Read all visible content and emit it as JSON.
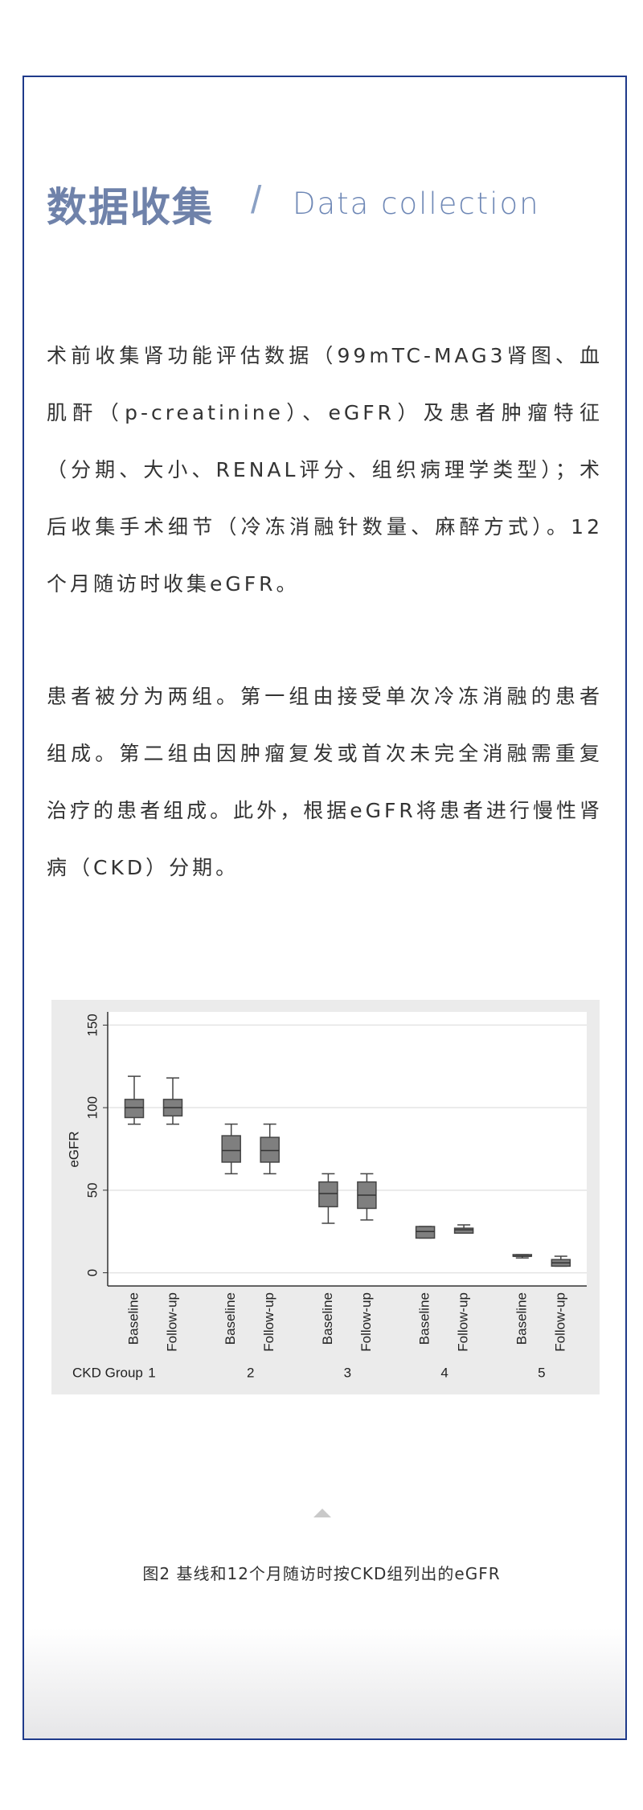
{
  "header": {
    "title": "数据收集",
    "subtitle": "Data collection"
  },
  "paragraphs": [
    "术前收集肾功能评估数据（99mTC-MAG3肾图、血肌酐（p-creatinine）、eGFR）及患者肿瘤特征（分期、大小、RENAL评分、组织病理学类型）；术后收集手术细节（冷冻消融针数量、麻醉方式）。12个月随访时收集eGFR。",
    "患者被分为两组。第一组由接受单次冷冻消融的患者组成。第二组由因肿瘤复发或首次未完全消融需重复治疗的患者组成。此外，根据eGFR将患者进行慢性肾病（CKD）分期。"
  ],
  "chart_data": {
    "type": "box",
    "ylabel": "eGFR",
    "group_label": "CKD Group",
    "categories": [
      "1",
      "2",
      "3",
      "4",
      "5"
    ],
    "ylim": [
      -8,
      158
    ],
    "yticks": [
      0,
      50,
      100,
      150
    ],
    "grid": true,
    "series": [
      {
        "name": "Baseline",
        "color": "#7f7f7f",
        "low": [
          90,
          60,
          30,
          21,
          9
        ],
        "q1": [
          94,
          67,
          40,
          21,
          10
        ],
        "median": [
          100,
          74,
          48,
          25,
          10
        ],
        "q3": [
          105,
          83,
          55,
          28,
          11
        ],
        "high": [
          119,
          90,
          60,
          28,
          11
        ]
      },
      {
        "name": "Follow-up",
        "color": "#7f7f7f",
        "low": [
          90,
          60,
          32,
          24,
          4
        ],
        "q1": [
          95,
          67,
          39,
          24,
          4
        ],
        "median": [
          100,
          74,
          47,
          26,
          6
        ],
        "q3": [
          105,
          82,
          55,
          27,
          8
        ],
        "high": [
          118,
          90,
          60,
          29,
          10
        ]
      }
    ]
  },
  "caption": "图2 基线和12个月随访时按CKD组列出的eGFR"
}
